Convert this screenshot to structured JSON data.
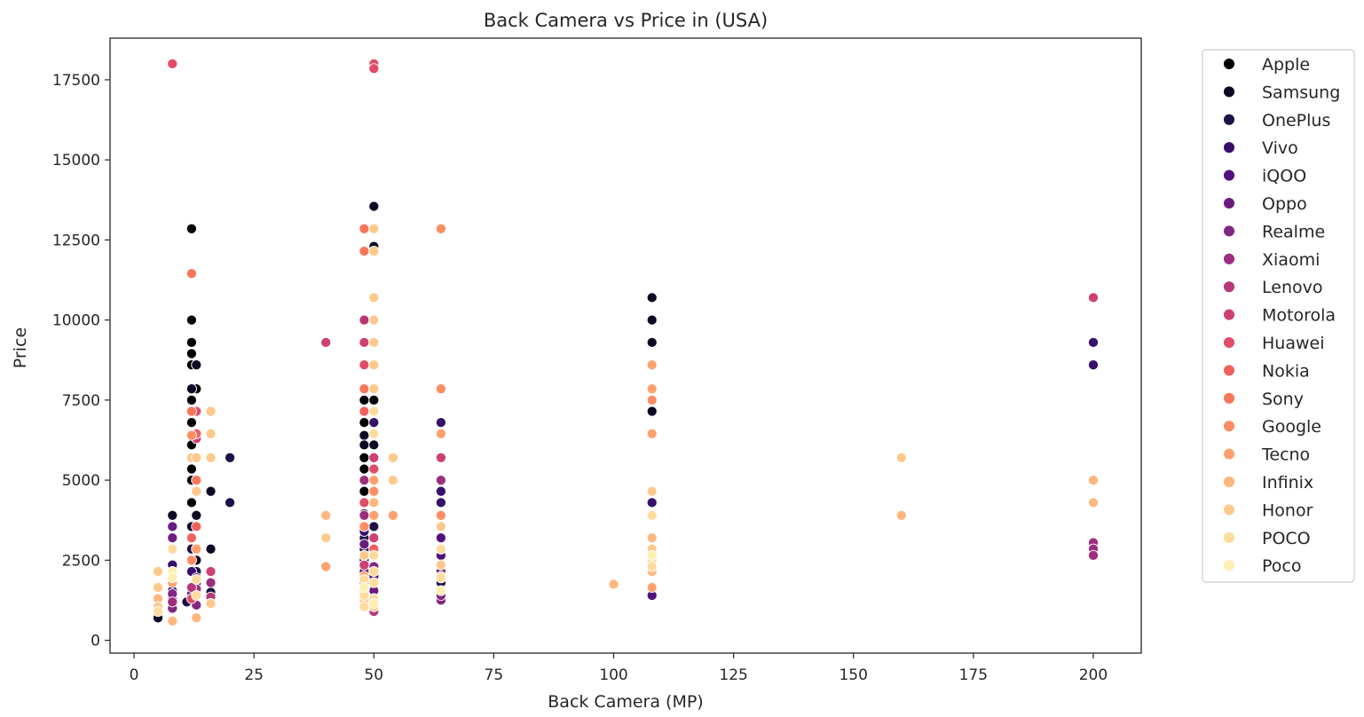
{
  "chart_data": {
    "type": "scatter",
    "title": "Back Camera vs Price in (USA)",
    "xlabel": "Back Camera (MP)",
    "ylabel": "Price",
    "xlim": [
      -5,
      210
    ],
    "ylim": [
      -400,
      18800
    ],
    "xticks": [
      0,
      25,
      50,
      75,
      100,
      125,
      150,
      175,
      200
    ],
    "yticks": [
      0,
      2500,
      5000,
      7500,
      10000,
      12500,
      15000,
      17500
    ],
    "grid": false,
    "legend_position": "outside-right",
    "series": [
      {
        "name": "Apple",
        "color": "#000004",
        "points": [
          [
            12,
            7500
          ],
          [
            12,
            7150
          ],
          [
            12,
            6800
          ],
          [
            12,
            6400
          ],
          [
            12,
            6100
          ],
          [
            12,
            5700
          ],
          [
            12,
            5350
          ],
          [
            12,
            5000
          ],
          [
            12,
            4300
          ],
          [
            12,
            8600
          ],
          [
            12,
            8950
          ],
          [
            12,
            9300
          ],
          [
            12,
            10000
          ],
          [
            12,
            12850
          ],
          [
            13,
            7850
          ],
          [
            48,
            7500
          ],
          [
            48,
            6800
          ],
          [
            48,
            6100
          ],
          [
            48,
            5700
          ],
          [
            48,
            5350
          ],
          [
            48,
            4650
          ],
          [
            48,
            4300
          ],
          [
            48,
            3950
          ],
          [
            48,
            7150
          ],
          [
            50,
            7500
          ]
        ]
      },
      {
        "name": "Samsung",
        "color": "#0b0924",
        "points": [
          [
            5,
            700
          ],
          [
            8,
            3900
          ],
          [
            12,
            3550
          ],
          [
            12,
            7850
          ],
          [
            13,
            8600
          ],
          [
            13,
            3900
          ],
          [
            13,
            2500
          ],
          [
            16,
            4650
          ],
          [
            16,
            2850
          ],
          [
            48,
            6400
          ],
          [
            48,
            6100
          ],
          [
            48,
            5000
          ],
          [
            48,
            3550
          ],
          [
            50,
            13550
          ],
          [
            50,
            12300
          ],
          [
            50,
            6100
          ],
          [
            108,
            10700
          ],
          [
            108,
            10000
          ],
          [
            108,
            9300
          ],
          [
            108,
            7150
          ]
        ]
      },
      {
        "name": "OnePlus",
        "color": "#1d1147",
        "points": [
          [
            11,
            1200
          ],
          [
            12,
            2850
          ],
          [
            13,
            2150
          ],
          [
            13,
            1800
          ],
          [
            16,
            1500
          ],
          [
            20,
            5700
          ],
          [
            20,
            4300
          ],
          [
            48,
            3200
          ],
          [
            48,
            2850
          ],
          [
            50,
            3550
          ],
          [
            64,
            1800
          ]
        ]
      },
      {
        "name": "Vivo",
        "color": "#36106b",
        "points": [
          [
            8,
            2350
          ],
          [
            8,
            1550
          ],
          [
            12,
            2150
          ],
          [
            13,
            1950
          ],
          [
            48,
            3400
          ],
          [
            48,
            2500
          ],
          [
            50,
            6800
          ],
          [
            50,
            4300
          ],
          [
            64,
            6800
          ],
          [
            64,
            4650
          ],
          [
            64,
            4300
          ],
          [
            108,
            4300
          ],
          [
            200,
            9300
          ],
          [
            200,
            8600
          ]
        ]
      },
      {
        "name": "iQOO",
        "color": "#51127c",
        "points": [
          [
            8,
            1300
          ],
          [
            8,
            1100
          ],
          [
            48,
            2650
          ],
          [
            50,
            2000
          ],
          [
            64,
            3200
          ],
          [
            64,
            2650
          ],
          [
            108,
            1400
          ]
        ]
      },
      {
        "name": "Oppo",
        "color": "#6a1c81",
        "points": [
          [
            8,
            3550
          ],
          [
            8,
            3200
          ],
          [
            12,
            1450
          ],
          [
            48,
            3000
          ],
          [
            48,
            2150
          ],
          [
            50,
            1550
          ],
          [
            64,
            2150
          ]
        ]
      },
      {
        "name": "Realme",
        "color": "#832681",
        "points": [
          [
            8,
            1450
          ],
          [
            8,
            1000
          ],
          [
            13,
            1100
          ],
          [
            48,
            1800
          ],
          [
            50,
            2300
          ],
          [
            64,
            1250
          ],
          [
            64,
            1400
          ]
        ]
      },
      {
        "name": "Xiaomi",
        "color": "#9c2e7f",
        "points": [
          [
            8,
            1200
          ],
          [
            13,
            1600
          ],
          [
            16,
            1800
          ],
          [
            48,
            5000
          ],
          [
            48,
            3900
          ],
          [
            48,
            1600
          ],
          [
            50,
            4650
          ],
          [
            64,
            5000
          ],
          [
            64,
            2850
          ],
          [
            200,
            3050
          ],
          [
            200,
            2850
          ],
          [
            200,
            2650
          ]
        ]
      },
      {
        "name": "Lenovo",
        "color": "#b73779",
        "points": [
          [
            12,
            1650
          ],
          [
            16,
            1350
          ],
          [
            48,
            10000
          ],
          [
            50,
            900
          ]
        ]
      },
      {
        "name": "Motorola",
        "color": "#ce4071",
        "points": [
          [
            13,
            6300
          ],
          [
            16,
            2150
          ],
          [
            40,
            9300
          ],
          [
            48,
            9300
          ],
          [
            48,
            2350
          ],
          [
            50,
            5700
          ],
          [
            50,
            3200
          ],
          [
            64,
            5700
          ],
          [
            200,
            10700
          ]
        ]
      },
      {
        "name": "Huawei",
        "color": "#e14c67",
        "points": [
          [
            8,
            18000
          ],
          [
            12,
            1300
          ],
          [
            13,
            7150
          ],
          [
            48,
            8600
          ],
          [
            48,
            4300
          ],
          [
            50,
            18000
          ],
          [
            50,
            17850
          ],
          [
            50,
            5350
          ]
        ]
      },
      {
        "name": "Nokia",
        "color": "#f0605d",
        "points": [
          [
            12,
            3200
          ],
          [
            13,
            6450
          ],
          [
            13,
            3550
          ],
          [
            48,
            7150
          ],
          [
            50,
            2850
          ]
        ]
      },
      {
        "name": "Sony",
        "color": "#f8765c",
        "points": [
          [
            12,
            11450
          ],
          [
            12,
            7150
          ],
          [
            13,
            5000
          ],
          [
            48,
            12850
          ],
          [
            48,
            12150
          ],
          [
            48,
            7850
          ]
        ]
      },
      {
        "name": "Google",
        "color": "#fd8d62",
        "points": [
          [
            12,
            6400
          ],
          [
            12,
            2500
          ],
          [
            48,
            3550
          ],
          [
            48,
            1500
          ],
          [
            50,
            4650
          ],
          [
            64,
            12850
          ],
          [
            64,
            7850
          ],
          [
            64,
            3900
          ],
          [
            108,
            7500
          ]
        ]
      },
      {
        "name": "Tecno",
        "color": "#fea16e",
        "points": [
          [
            8,
            1800
          ],
          [
            13,
            2850
          ],
          [
            40,
            2300
          ],
          [
            48,
            2000
          ],
          [
            50,
            5000
          ],
          [
            50,
            3900
          ],
          [
            54,
            3900
          ],
          [
            64,
            6450
          ],
          [
            64,
            2000
          ],
          [
            108,
            8600
          ],
          [
            108,
            7850
          ],
          [
            108,
            6450
          ],
          [
            108,
            1650
          ]
        ]
      },
      {
        "name": "Infinix",
        "color": "#feb77e",
        "points": [
          [
            5,
            1300
          ],
          [
            8,
            600
          ],
          [
            13,
            700
          ],
          [
            40,
            3900
          ],
          [
            50,
            4300
          ],
          [
            100,
            1750
          ],
          [
            108,
            3200
          ],
          [
            108,
            2150
          ],
          [
            160,
            3900
          ],
          [
            200,
            5000
          ],
          [
            200,
            4300
          ]
        ]
      },
      {
        "name": "Honor",
        "color": "#fec98d",
        "points": [
          [
            5,
            2150
          ],
          [
            5,
            1650
          ],
          [
            5,
            1050
          ],
          [
            12,
            5700
          ],
          [
            13,
            4650
          ],
          [
            13,
            5700
          ],
          [
            16,
            7150
          ],
          [
            16,
            6450
          ],
          [
            16,
            5700
          ],
          [
            16,
            1150
          ],
          [
            40,
            3200
          ],
          [
            48,
            2650
          ],
          [
            48,
            1250
          ],
          [
            50,
            12850
          ],
          [
            50,
            12150
          ],
          [
            50,
            10700
          ],
          [
            50,
            10000
          ],
          [
            50,
            9300
          ],
          [
            50,
            8600
          ],
          [
            50,
            7850
          ],
          [
            50,
            1050
          ],
          [
            54,
            5700
          ],
          [
            54,
            5000
          ],
          [
            64,
            3550
          ],
          [
            64,
            2350
          ],
          [
            108,
            4650
          ],
          [
            108,
            2850
          ],
          [
            160,
            5700
          ]
        ]
      },
      {
        "name": "POCO",
        "color": "#fedc9f",
        "points": [
          [
            5,
            900
          ],
          [
            8,
            2850
          ],
          [
            13,
            1900
          ],
          [
            13,
            1400
          ],
          [
            48,
            1900
          ],
          [
            48,
            1400
          ],
          [
            48,
            1050
          ],
          [
            50,
            7150
          ],
          [
            50,
            6450
          ],
          [
            50,
            2650
          ],
          [
            50,
            2150
          ],
          [
            50,
            1800
          ],
          [
            50,
            1300
          ],
          [
            64,
            2850
          ],
          [
            64,
            1950
          ],
          [
            108,
            3900
          ],
          [
            108,
            2500
          ],
          [
            108,
            2300
          ]
        ]
      },
      {
        "name": "Poco",
        "color": "#fcefb1",
        "points": [
          [
            8,
            2150
          ],
          [
            8,
            1950
          ],
          [
            48,
            1650
          ],
          [
            50,
            1150
          ],
          [
            64,
            1550
          ],
          [
            108,
            2650
          ]
        ]
      }
    ]
  }
}
